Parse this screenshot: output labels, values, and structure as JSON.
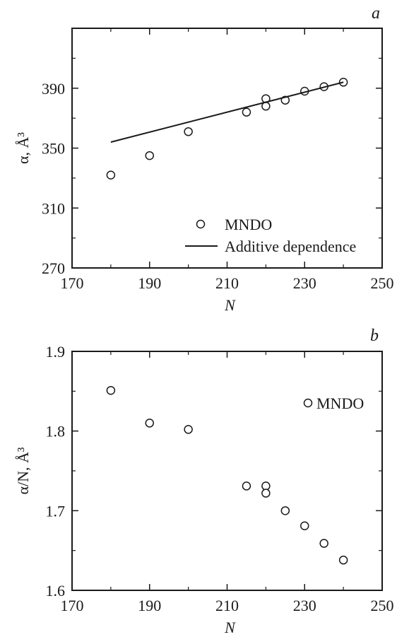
{
  "chart_data": [
    {
      "panel": "a",
      "type": "scatter",
      "xlabel": "N",
      "ylabel": "α, Å³",
      "xlim": [
        170,
        250
      ],
      "ylim": [
        270,
        430
      ],
      "x_ticks": [
        170,
        190,
        210,
        230,
        250
      ],
      "y_ticks": [
        270,
        310,
        350,
        390
      ],
      "series": [
        {
          "name": "MNDO",
          "kind": "markers",
          "marker": "open-circle",
          "x": [
            180,
            190,
            200,
            215,
            220,
            220,
            225,
            230,
            235,
            240
          ],
          "y": [
            332,
            345,
            361,
            374,
            378,
            383,
            382,
            388,
            391,
            394
          ]
        },
        {
          "name": "Additive dependence",
          "kind": "line",
          "x": [
            180,
            240
          ],
          "y": [
            354,
            394
          ]
        }
      ],
      "legend": "bottom-right"
    },
    {
      "panel": "b",
      "type": "scatter",
      "xlabel": "N",
      "ylabel": "α/N, Å³",
      "xlim": [
        170,
        250
      ],
      "ylim": [
        1.6,
        1.9
      ],
      "x_ticks": [
        170,
        190,
        210,
        230,
        250
      ],
      "y_ticks": [
        "1.6",
        "1.7",
        "1.8",
        "1.9"
      ],
      "series": [
        {
          "name": "MNDO",
          "kind": "markers",
          "marker": "open-circle",
          "x": [
            180,
            190,
            200,
            215,
            220,
            220,
            225,
            230,
            235,
            240
          ],
          "y": [
            1.851,
            1.81,
            1.802,
            1.731,
            1.731,
            1.722,
            1.7,
            1.681,
            1.659,
            1.638
          ]
        }
      ],
      "legend": "top-right"
    }
  ]
}
